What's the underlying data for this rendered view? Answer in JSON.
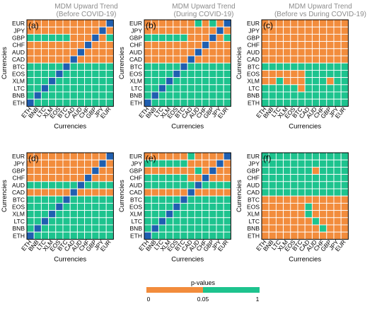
{
  "column_titles": [
    {
      "line1": "MDM Upward Trend",
      "line2": "(Before COVID-19)"
    },
    {
      "line1": "MDM Upward Trend",
      "line2": "(During COVID-19)"
    },
    {
      "line1": "MDM Upward Trend",
      "line2": "(Before vs During COVID-19)"
    }
  ],
  "colorbar": {
    "title": "p-values",
    "tick_labels": [
      "0",
      "0.05",
      "1"
    ],
    "low_color": "#f28c3c",
    "high_color": "#1dc38e"
  },
  "colors": {
    "low": "#f28c3c",
    "high": "#1dc38e",
    "diag": "#1f5fb0",
    "grid": "#ffffff"
  },
  "chart_data": [
    {
      "id": "a",
      "panel_label": "(a)",
      "type": "heatmap",
      "xlabel": "Currencies",
      "ylabel": "Currencies",
      "x": [
        "ETH",
        "BNB",
        "LTC",
        "XLM",
        "EOS",
        "BTC",
        "CAD",
        "AUD",
        "CHF",
        "GBP",
        "JPY",
        "EUR"
      ],
      "y": [
        "EUR",
        "JPY",
        "GBP",
        "CHF",
        "AUD",
        "CAD",
        "BTC",
        "EOS",
        "XLM",
        "LTC",
        "BNB",
        "ETH"
      ],
      "value_legend": "L = p < 0.05, H = p >= 0.05, D = diagonal",
      "rows": [
        "LLLLLLLLLLLD",
        "LLLLLLLLLLDL",
        "HHHHHHLLLDLH",
        "LLLLLLLLDLLL",
        "LLLLLLLDLLLL",
        "LLLLLLDLLLLL",
        "HHHHHDHHHHHH",
        "HHHHDHHHHHHH",
        "HHHDHHHHHHHH",
        "HHDHHHHHHHHH",
        "HDHHHHHHHHHH",
        "DHHHHHHHHHHH"
      ]
    },
    {
      "id": "b",
      "panel_label": "(b)",
      "type": "heatmap",
      "xlabel": "Currencies",
      "ylabel": "Currencies",
      "x": [
        "ETH",
        "BNB",
        "LTC",
        "XLM",
        "EOS",
        "BTC",
        "CAD",
        "AUD",
        "CHF",
        "GBP",
        "JPY",
        "EUR"
      ],
      "y": [
        "EUR",
        "JPY",
        "GBP",
        "CHF",
        "AUD",
        "CAD",
        "BTC",
        "EOS",
        "XLM",
        "LTC",
        "BNB",
        "ETH"
      ],
      "value_legend": "L = p < 0.05, H = p >= 0.05, D = diagonal",
      "rows": [
        "LLLLLLLHLHLD",
        "LLLLLLLLLLDL",
        "HHHHHHLLLDLH",
        "LLLLLLLLDLLL",
        "LLLLLLLDLLLL",
        "LLLLLLDLLLLL",
        "HHHHHDHHHHHH",
        "HHHHDHHHHHHH",
        "HHHDHHHHHHHH",
        "HHDHHHHHHHHH",
        "HDHHHHHHHHHH",
        "DHHHHHHHHHHH"
      ]
    },
    {
      "id": "c",
      "panel_label": "(c)",
      "type": "heatmap",
      "xlabel": "Currencies",
      "ylabel": "Currencies",
      "x": [
        "ETH",
        "BNB",
        "LTC",
        "XLM",
        "EOS",
        "BTC",
        "CAD",
        "AUD",
        "CHF",
        "GBP",
        "JPY",
        "EUR"
      ],
      "y": [
        "EUR",
        "JPY",
        "GBP",
        "CHF",
        "AUD",
        "CAD",
        "BTC",
        "EOS",
        "XLM",
        "LTC",
        "BNB",
        "ETH"
      ],
      "value_legend": "L = p < 0.05, H = p >= 0.05",
      "rows": [
        "LLLLLLLLLLLL",
        "LLLLLLLLLLLL",
        "LLLLLLLLLLLL",
        "LLLLLLLLLLLL",
        "LLLLLLLLLLLL",
        "LLLLLLLLLLLL",
        "HHHHHHHHHHHH",
        "LLLLLLHHHHHH",
        "LLHLLLHHHLHH",
        "HHHHHLHHHHHH",
        "HHHHHHHHHHHH",
        "HHHHHHHHHHHH"
      ]
    },
    {
      "id": "d",
      "panel_label": "(d)",
      "type": "heatmap",
      "xlabel": "Currencies",
      "ylabel": "Currencies",
      "x": [
        "ETH",
        "BNB",
        "LTC",
        "XLM",
        "EOS",
        "BTC",
        "CAD",
        "AUD",
        "CHF",
        "GBP",
        "JPY",
        "EUR"
      ],
      "y": [
        "EUR",
        "JPY",
        "GBP",
        "CHF",
        "AUD",
        "CAD",
        "BTC",
        "EOS",
        "XLM",
        "LTC",
        "BNB",
        "ETH"
      ],
      "value_legend": "L = p < 0.05, H = p >= 0.05, D = diagonal",
      "rows": [
        "LLLLLLLLLLLD",
        "LLLLLLLLLLDL",
        "LLLLLLLLLDLL",
        "LLLLLLLLDLLL",
        "HHHHHHHDHHHH",
        "LLLLLLDLLLLL",
        "HHHHHDHHHHHH",
        "HHHHDHHHHHHH",
        "HHHDHHHHHHHH",
        "HHDHHHHHHHHH",
        "HDHHHHHHHHHH",
        "DHHHHHHHHHHH"
      ]
    },
    {
      "id": "e",
      "panel_label": "(e)",
      "type": "heatmap",
      "xlabel": "Currencies",
      "ylabel": "Currencies",
      "x": [
        "ETH",
        "BNB",
        "LTC",
        "XLM",
        "EOS",
        "BTC",
        "CAD",
        "AUD",
        "CHF",
        "GBP",
        "JPY",
        "EUR"
      ],
      "y": [
        "EUR",
        "JPY",
        "GBP",
        "CHF",
        "AUD",
        "CAD",
        "BTC",
        "EOS",
        "XLM",
        "LTC",
        "BNB",
        "ETH"
      ],
      "value_legend": "L = p < 0.05, H = p >= 0.05, D = diagonal",
      "rows": [
        "LLLLLLHLLLLD",
        "HHHHHHLLLLDL",
        "LLLLLLLHLDLL",
        "HHHHHHLLDLLL",
        "HHHHHHHDHHHH",
        "LLLLLLDLLLLL",
        "HHHHHDHHHHHH",
        "HHHHDHHHHHHH",
        "HHHDHHHHHHHH",
        "HHDHHHHHHHHH",
        "HDHHHHHHHHHH",
        "DHHHHHHHHHHH"
      ]
    },
    {
      "id": "f",
      "panel_label": "(f)",
      "type": "heatmap",
      "xlabel": "Currencies",
      "ylabel": "Currencies",
      "x": [
        "ETH",
        "BNB",
        "LTC",
        "XLM",
        "EOS",
        "BTC",
        "CAD",
        "AUD",
        "CHF",
        "GBP",
        "JPY",
        "EUR"
      ],
      "y": [
        "EUR",
        "JPY",
        "GBP",
        "CHF",
        "AUD",
        "CAD",
        "BTC",
        "EOS",
        "XLM",
        "LTC",
        "BNB",
        "ETH"
      ],
      "value_legend": "L = p < 0.05, H = p >= 0.05",
      "rows": [
        "HHHHHHHHHHHH",
        "HHHHHHHHHHHH",
        "HHHHHHHLHHHH",
        "HHHHHHHHHHHH",
        "HHHHHHHHHHHH",
        "HHHHHHHHHHHH",
        "LLLLLLLLLLLL",
        "LLLLLLHLLLLL",
        "LLLLLLHLLLLL",
        "LLLLLLLHLLLL",
        "LLLLLLLLHLLL",
        "LLLLLLLLLLLL"
      ]
    }
  ]
}
